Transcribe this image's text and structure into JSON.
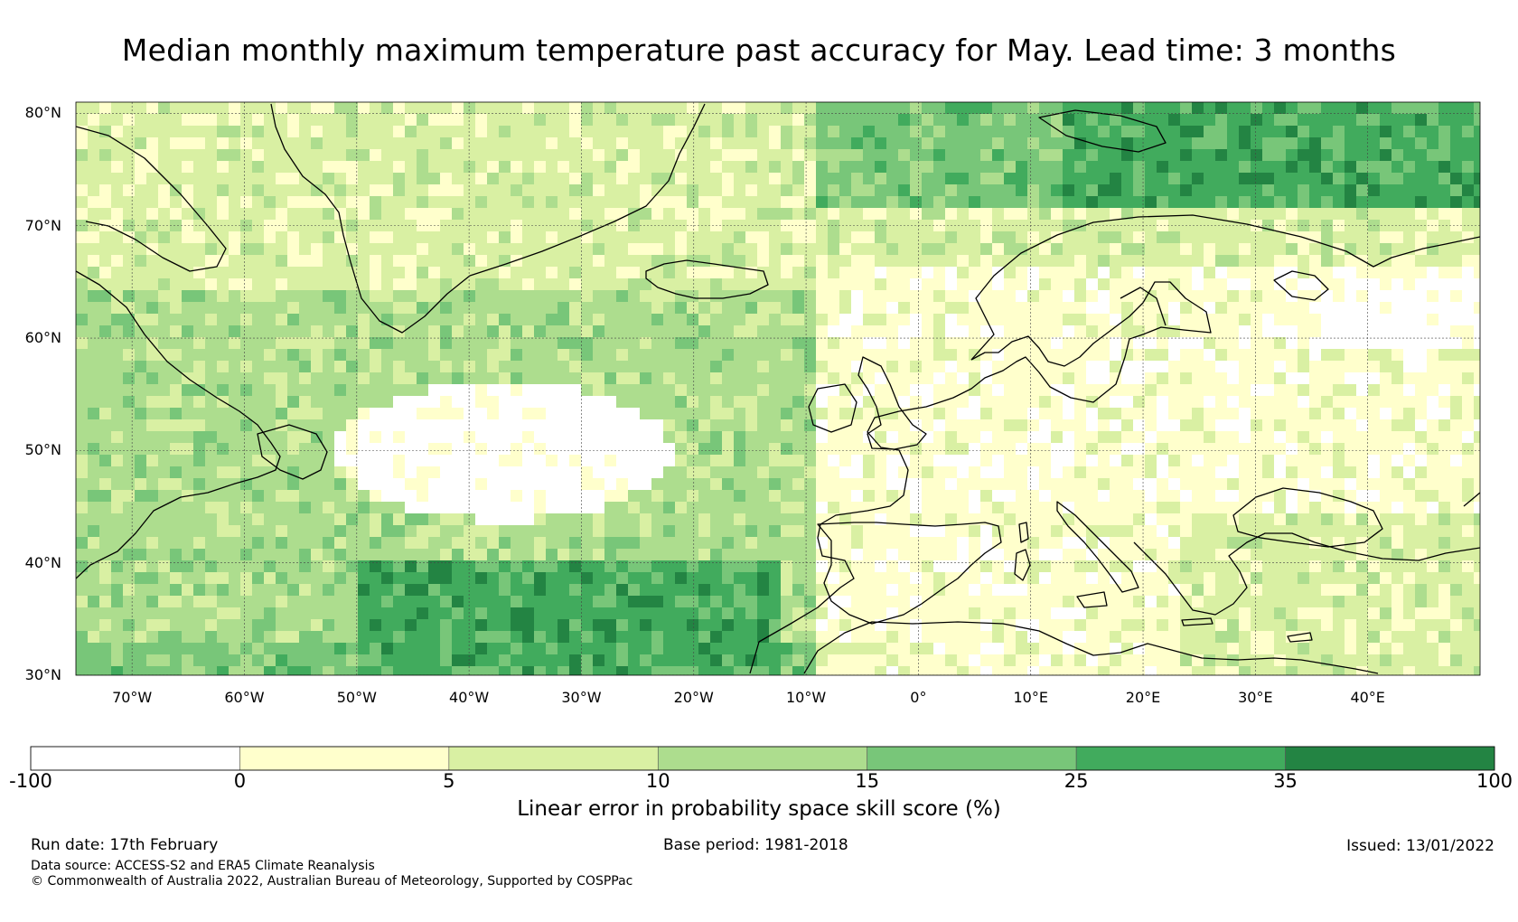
{
  "title": "Median monthly maximum temperature past accuracy for May. Lead time: 3 months",
  "map": {
    "lon_range": [
      -75,
      50
    ],
    "lat_range": [
      30,
      81
    ],
    "lat_labels": [
      "30°N",
      "40°N",
      "50°N",
      "60°N",
      "70°N",
      "80°N"
    ],
    "lat_values": [
      30,
      40,
      50,
      60,
      70,
      80
    ],
    "lon_labels": [
      "70°W",
      "60°W",
      "50°W",
      "40°W",
      "30°W",
      "20°W",
      "10°W",
      "0°",
      "10°E",
      "20°E",
      "30°E",
      "40°E"
    ],
    "lon_values": [
      -70,
      -60,
      -50,
      -40,
      -30,
      -20,
      -10,
      0,
      10,
      20,
      30,
      40
    ]
  },
  "colorbar": {
    "boundaries": [
      "-100",
      "0",
      "5",
      "10",
      "15",
      "25",
      "35",
      "100"
    ],
    "colors": [
      "#ffffff",
      "#ffffcc",
      "#d9f0a3",
      "#addd8e",
      "#78c679",
      "#41ab5d",
      "#238443"
    ],
    "label": "Linear error in probability space skill score (%)"
  },
  "footer": {
    "run_date": "Run date: 17th February",
    "base_period": "Base period: 1981-2018",
    "issued": "Issued: 13/01/2022",
    "data_source": "Data source: ACCESS-S2 and ERA5 Climate Reanalysis",
    "copyright": "© Commonwealth of Australia 2022, Australian Bureau of Meteorology, Supported by COSPPac"
  }
}
